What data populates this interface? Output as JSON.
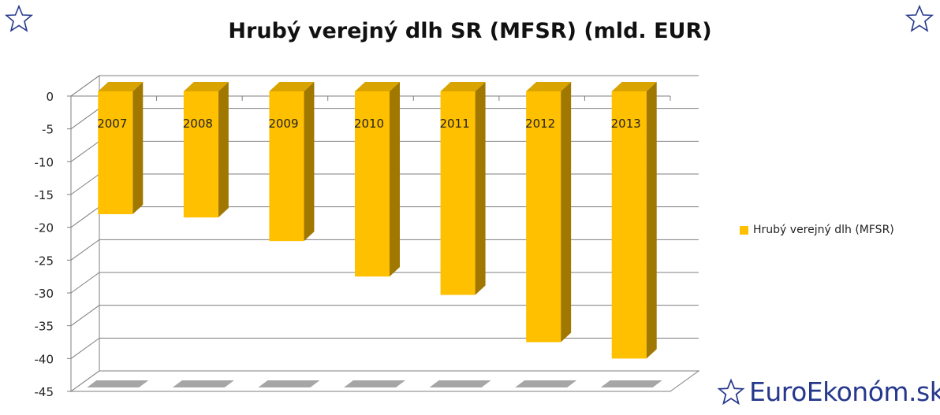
{
  "title": "Hrubý verejný dlh SR (MFSR) (mld. EUR)",
  "brand": "EuroEkonóm.sk",
  "colors": {
    "bar_front": "#ffc000",
    "bar_side": "#a07800",
    "bar_top": "#d9a300",
    "grid": "#7f7f7f",
    "brand": "#26388c"
  },
  "icons": {
    "corner_left": "star-outline-icon",
    "corner_right": "star-outline-icon",
    "brand": "star-outline-icon"
  },
  "chart_data": {
    "type": "bar",
    "categories": [
      "2007",
      "2008",
      "2009",
      "2010",
      "2011",
      "2012",
      "2013"
    ],
    "series": [
      {
        "name": "Hrubý verejný dlh (MFSR)",
        "values": [
          -18.0,
          -18.5,
          -22.1,
          -27.5,
          -30.3,
          -37.5,
          -40.0
        ]
      }
    ],
    "yticks": [
      "0",
      "-5",
      "-10",
      "-15",
      "-20",
      "-25",
      "-30",
      "-35",
      "-40",
      "-45"
    ],
    "ylim": [
      -45,
      0
    ],
    "grid": true,
    "legend_position": "right",
    "style": "3d-column"
  }
}
